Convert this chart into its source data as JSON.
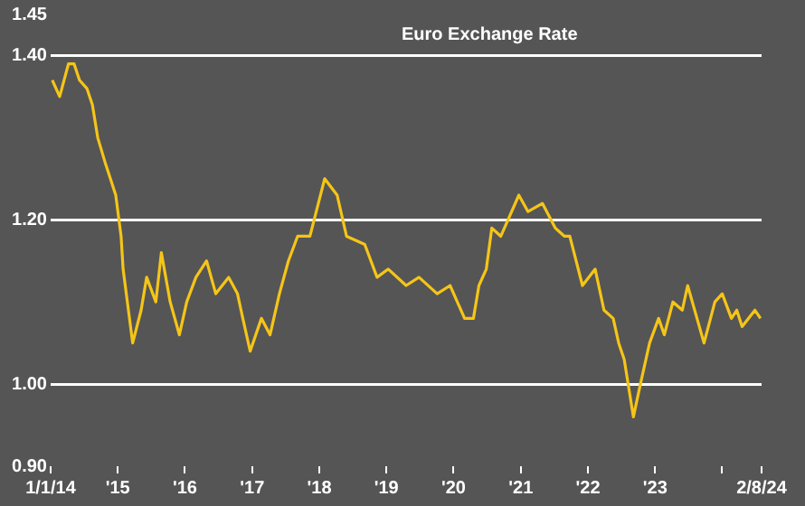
{
  "chart_data": {
    "type": "line",
    "title": "Euro Exchange Rate",
    "x": [
      "2014-01-10",
      "2014-02-19",
      "2014-04-08",
      "2014-05-08",
      "2014-06-07",
      "2014-07-17",
      "2014-08-16",
      "2014-09-14",
      "2014-10-24",
      "2014-11-22",
      "2014-12-21",
      "2015-01-19",
      "2015-01-30",
      "2015-03-23",
      "2015-05-08",
      "2015-06-07",
      "2015-07-27",
      "2015-08-26",
      "2015-10-13",
      "2015-12-02",
      "2016-01-11",
      "2016-03-01",
      "2016-04-28",
      "2016-06-17",
      "2016-08-26",
      "2016-10-13",
      "2016-11-11",
      "2016-12-21",
      "2017-02-20",
      "2017-04-08",
      "2017-05-29",
      "2017-07-17",
      "2017-09-05",
      "2017-11-11",
      "2018-01-30",
      "2018-04-08",
      "2018-05-29",
      "2018-09-05",
      "2018-11-11",
      "2019-01-11",
      "2019-04-18",
      "2019-06-27",
      "2019-10-04",
      "2019-12-13",
      "2020-03-01",
      "2020-04-18",
      "2020-05-18",
      "2020-06-27",
      "2020-07-27",
      "2020-09-14",
      "2020-12-21",
      "2021-02-09",
      "2021-04-28",
      "2021-07-07",
      "2021-08-26",
      "2021-09-24",
      "2021-12-02",
      "2022-02-09",
      "2022-03-29",
      "2022-05-18",
      "2022-06-17",
      "2022-07-17",
      "2022-09-05",
      "2022-10-13",
      "2022-12-02",
      "2023-01-20",
      "2023-02-20",
      "2023-04-08",
      "2023-05-29",
      "2023-06-27",
      "2023-09-24",
      "2023-11-22",
      "2024-01-01",
      "2024-02-20",
      "2024-03-20",
      "2024-04-18",
      "2024-06-27",
      "2024-07-27"
    ],
    "series": [
      {
        "color": "#f5c518",
        "values": [
          1.37,
          1.35,
          1.39,
          1.39,
          1.37,
          1.36,
          1.34,
          1.3,
          1.27,
          1.25,
          1.23,
          1.18,
          1.14,
          1.05,
          1.09,
          1.13,
          1.1,
          1.16,
          1.1,
          1.06,
          1.1,
          1.13,
          1.15,
          1.11,
          1.13,
          1.11,
          1.08,
          1.04,
          1.08,
          1.06,
          1.11,
          1.15,
          1.18,
          1.18,
          1.25,
          1.23,
          1.18,
          1.17,
          1.13,
          1.14,
          1.12,
          1.13,
          1.11,
          1.12,
          1.08,
          1.08,
          1.12,
          1.14,
          1.19,
          1.18,
          1.23,
          1.21,
          1.22,
          1.19,
          1.18,
          1.18,
          1.12,
          1.14,
          1.09,
          1.08,
          1.05,
          1.03,
          0.96,
          1.0,
          1.05,
          1.08,
          1.06,
          1.1,
          1.09,
          1.12,
          1.05,
          1.1,
          1.11,
          1.08,
          1.09,
          1.07,
          1.09,
          1.08
        ]
      }
    ],
    "xlim": [
      "2014-01-01",
      "2024-08-02"
    ],
    "xticks": [
      {
        "value": "2014-01-01",
        "label": "1/1/14"
      },
      {
        "value": "2015-01-01",
        "label": "'15"
      },
      {
        "value": "2016-01-01",
        "label": "'16"
      },
      {
        "value": "2017-01-01",
        "label": "'17"
      },
      {
        "value": "2018-01-01",
        "label": "'18"
      },
      {
        "value": "2019-01-01",
        "label": "'19"
      },
      {
        "value": "2020-01-01",
        "label": "'20"
      },
      {
        "value": "2021-01-01",
        "label": "'21"
      },
      {
        "value": "2022-01-01",
        "label": "'22"
      },
      {
        "value": "2023-01-01",
        "label": "'23"
      },
      {
        "value": "2024-01-01",
        "label": null
      },
      {
        "value": "2024-08-02",
        "label": "2/8/24"
      }
    ],
    "ylim": [
      0.9,
      1.45
    ],
    "yticks": [
      {
        "value": 0.9,
        "label": "0.90"
      },
      {
        "value": 1,
        "label": "1.00"
      },
      {
        "value": 1.2,
        "label": "1.20"
      },
      {
        "value": 1.4,
        "label": "1.40"
      },
      {
        "value": 1.45,
        "label": "1.45"
      }
    ],
    "grid": "y",
    "legend": false,
    "marker": "none",
    "line_style": "solid"
  }
}
